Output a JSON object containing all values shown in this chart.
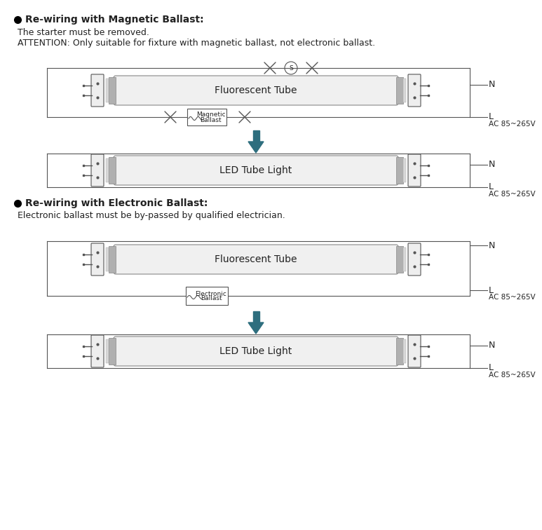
{
  "bg_color": "#ffffff",
  "line_color": "#555555",
  "arrow_color": "#2e6e7e",
  "text_color": "#222222",
  "section1_title": "Re-wiring with Magnetic Ballast:",
  "section1_line1": "The starter must be removed.",
  "section1_line2": "ATTENTION: Only suitable for fixture with magnetic ballast, not electronic ballast.",
  "section2_title": "Re-wiring with Electronic Ballast:",
  "section2_line1": "Electronic ballast must be by-passed by qualified electrician.",
  "tube_label_fluor": "Fluorescent Tube",
  "tube_label_led": "LED Tube Light",
  "ballast_label_mag1": "Magnetic",
  "ballast_label_mag2": "Ballast",
  "ballast_label_elec1": "Electronic",
  "ballast_label_elec2": "Ballast",
  "N_label": "N",
  "L_label": "L",
  "voltage_label": "AC 85~265V"
}
